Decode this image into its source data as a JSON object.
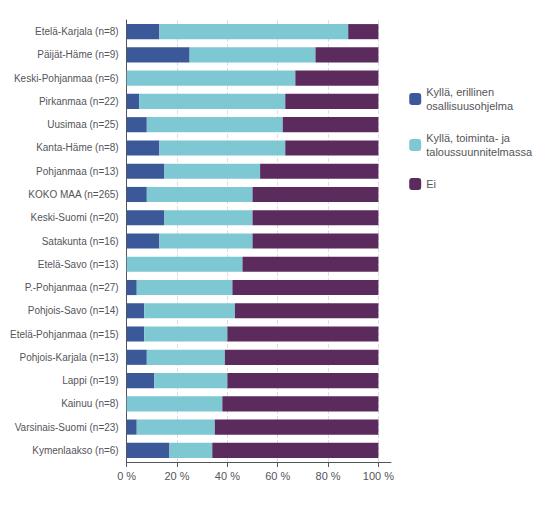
{
  "chart_data": {
    "type": "bar",
    "orientation": "horizontal",
    "stacked": true,
    "categories": [
      "Etelä-Karjala (n=8)",
      "Päijät-Häme (n=9)",
      "Keski-Pohjanmaa (n=6)",
      "Pirkanmaa (n=22)",
      "Uusimaa (n=25)",
      "Kanta-Häme (n=8)",
      "Pohjanmaa (n=13)",
      "KOKO MAA (n=265)",
      "Keski-Suomi (n=20)",
      "Satakunta (n=16)",
      "Etelä-Savo (n=13)",
      "P.-Pohjanmaa (n=27)",
      "Pohjois-Savo (n=14)",
      "Etelä-Pohjanmaa (n=15)",
      "Pohjois-Karjala (n=13)",
      "Lappi (n=19)",
      "Kainuu (n=8)",
      "Varsinais-Suomi (n=23)",
      "Kymenlaakso (n=6)"
    ],
    "series": [
      {
        "name": "Kyllä, erillinen\nosallisuusohjelma",
        "color": "#3b5998",
        "values": [
          13,
          25,
          0,
          5,
          8,
          13,
          15,
          8,
          15,
          13,
          0,
          4,
          7,
          7,
          8,
          11,
          0,
          4,
          17
        ]
      },
      {
        "name": "Kyllä, toiminta- ja\ntaloussuunnitelmassa",
        "color": "#7ec8d4",
        "values": [
          75,
          50,
          67,
          58,
          54,
          50,
          38,
          42,
          35,
          37,
          46,
          38,
          36,
          33,
          31,
          29,
          38,
          31,
          17
        ]
      },
      {
        "name": "Ei",
        "color": "#5c2b5e",
        "values": [
          12,
          25,
          33,
          37,
          38,
          37,
          47,
          50,
          50,
          50,
          54,
          58,
          57,
          60,
          61,
          60,
          62,
          65,
          66
        ]
      }
    ],
    "xlim": [
      0,
      105
    ],
    "xticks": [
      {
        "value": 0,
        "label": "0 %"
      },
      {
        "value": 20,
        "label": "20 %"
      },
      {
        "value": 40,
        "label": "40 %"
      },
      {
        "value": 60,
        "label": "60 %"
      },
      {
        "value": 80,
        "label": "80 %"
      },
      {
        "value": 100,
        "label": "100 %"
      }
    ],
    "grid": true,
    "legend": "right"
  }
}
